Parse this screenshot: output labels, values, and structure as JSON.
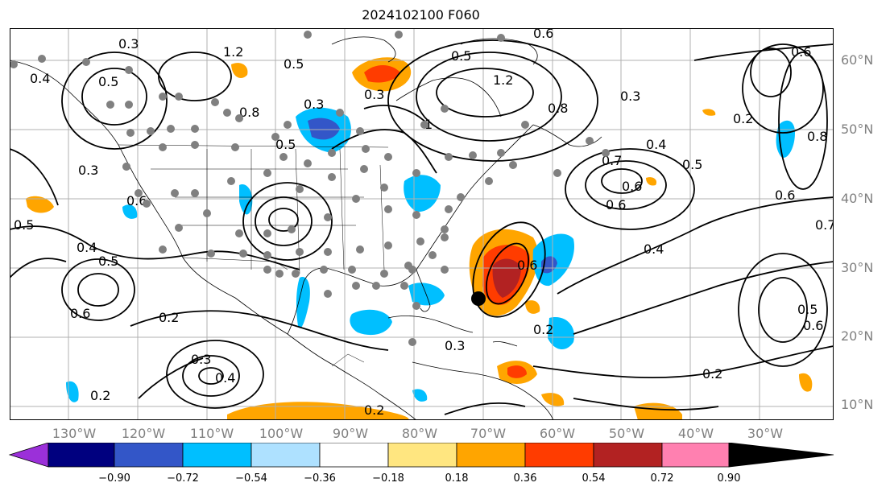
{
  "title": "2024102100 F060",
  "map": {
    "lat_labels": [
      "60°N",
      "50°N",
      "40°N",
      "30°N",
      "20°N",
      "10°N"
    ],
    "lon_labels": [
      "130°W",
      "120°W",
      "110°W",
      "100°W",
      "90°W",
      "80°W",
      "70°W",
      "60°W",
      "50°W",
      "40°W",
      "30°W"
    ],
    "contour_labels": [
      "0.3",
      "1.2",
      "0.5",
      "0.4",
      "0.5",
      "0.3",
      "1.2",
      "0.6",
      "0.5",
      "0.3",
      "0.8",
      "1",
      "0.8",
      "0.3",
      "0.2",
      "0.6",
      "0.8",
      "0.7",
      "0.5",
      "0.6",
      "0.6",
      "0.4",
      "0.5",
      "0.3",
      "0.6",
      "0.4",
      "0.5",
      "0.2",
      "0.6",
      "0.3",
      "0.4",
      "0.2",
      "0.2",
      "0.3",
      "0.2",
      "0.6",
      "0.7",
      "0.5",
      "0.6",
      "0.2",
      "0.4",
      "0.5",
      "0.6"
    ],
    "colors": {
      "land_outline": "#000000",
      "grid": "#b0b0b0",
      "contour": "#000000",
      "station_dots": "#808080"
    }
  },
  "colorbar": {
    "ticks": [
      "−0.90",
      "−0.72",
      "−0.54",
      "−0.36",
      "−0.18",
      "0.18",
      "0.36",
      "0.54",
      "0.72",
      "0.90"
    ],
    "colors": [
      "#9b30d9",
      "#00007f",
      "#3356c8",
      "#00bfff",
      "#aee1ff",
      "#ffffff",
      "#ffe680",
      "#ffa500",
      "#ff3c00",
      "#b22222",
      "#ff80b0"
    ]
  }
}
